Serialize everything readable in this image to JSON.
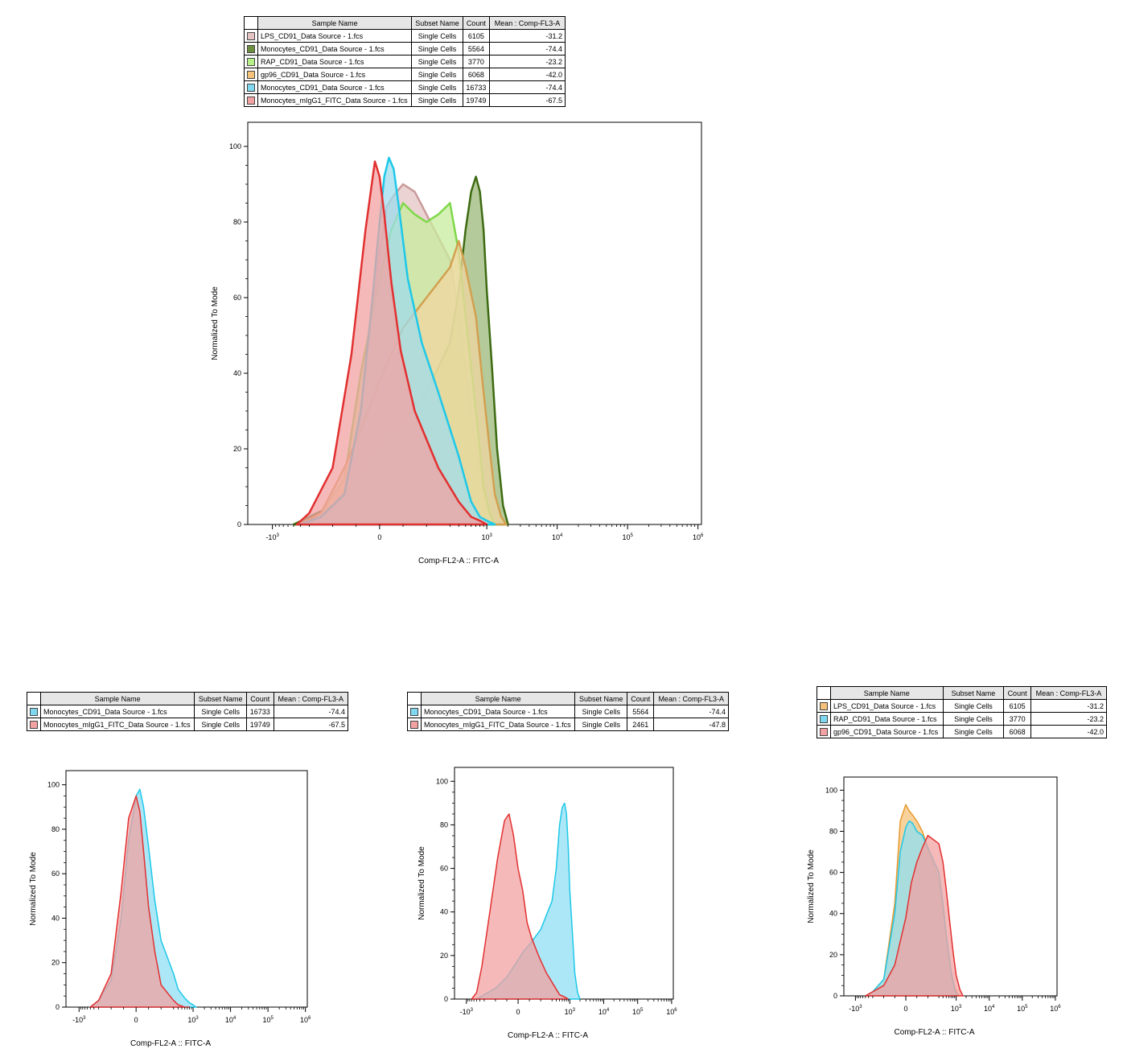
{
  "panels": [
    {
      "id": "main",
      "table": {
        "headers": [
          "Sample Name",
          "Subset Name",
          "Count",
          "Mean : Comp-FL3-A"
        ],
        "rows": [
          {
            "sample": "LPS_CD91_Data Source - 1.fcs",
            "subset": "Single Cells",
            "count": "6105",
            "mean": "-31.2",
            "color": "#e6c4c4"
          },
          {
            "sample": "Monocytes_CD91_Data Source - 1.fcs",
            "subset": "Single Cells",
            "count": "5564",
            "mean": "-74.4",
            "color": "#6b8f3e"
          },
          {
            "sample": "RAP_CD91_Data Source - 1.fcs",
            "subset": "Single Cells",
            "count": "3770",
            "mean": "-23.2",
            "color": "#b8f08a"
          },
          {
            "sample": "gp96_CD91_Data Source - 1.fcs",
            "subset": "Single Cells",
            "count": "6068",
            "mean": "-42.0",
            "color": "#f5c27a"
          },
          {
            "sample": "Monocytes_CD91_Data Source - 1.fcs",
            "subset": "Single Cells",
            "count": "16733",
            "mean": "-74.4",
            "color": "#7fd8f0"
          },
          {
            "sample": "Monocytes_mIgG1_FITC_Data Source - 1.fcs",
            "subset": "Single Cells",
            "count": "19749",
            "mean": "-67.5",
            "color": "#f2a2a2"
          }
        ]
      },
      "xlabel": "Comp-FL2-A :: FITC-A",
      "ylabel": "Normalized To Mode"
    },
    {
      "id": "bl",
      "table": {
        "headers": [
          "Sample Name",
          "Subset Name",
          "Count",
          "Mean : Comp-FL3-A"
        ],
        "rows": [
          {
            "sample": "Monocytes_CD91_Data Source - 1.fcs",
            "subset": "Single Cells",
            "count": "16733",
            "mean": "-74.4",
            "color": "#7fd8f0"
          },
          {
            "sample": "Monocytes_mIgG1_FITC_Data Source - 1.fcs",
            "subset": "Single Cells",
            "count": "19749",
            "mean": "-67.5",
            "color": "#f2a2a2"
          }
        ]
      },
      "xlabel": "Comp-FL2-A :: FITC-A",
      "ylabel": "Normalized To Mode"
    },
    {
      "id": "bm",
      "table": {
        "headers": [
          "Sample Name",
          "Subset Name",
          "Count",
          "Mean : Comp-FL3-A"
        ],
        "rows": [
          {
            "sample": "Monocytes_CD91_Data Source - 1.fcs",
            "subset": "Single Cells",
            "count": "5564",
            "mean": "-74.4",
            "color": "#7fd8f0"
          },
          {
            "sample": "Monocytes_mIgG1_FITC_Data Source - 1.fcs",
            "subset": "Single Cells",
            "count": "2461",
            "mean": "-47.8",
            "color": "#f2a2a2"
          }
        ]
      },
      "xlabel": "Comp-FL2-A :: FITC-A",
      "ylabel": "Normalized To Mode"
    },
    {
      "id": "br",
      "table": {
        "headers": [
          "Sample Name",
          "Subset Name",
          "Count",
          "Mean : Comp-FL3-A"
        ],
        "rows": [
          {
            "sample": "LPS_CD91_Data Source - 1.fcs",
            "subset": "Single Cells",
            "count": "6105",
            "mean": "-31.2",
            "color": "#f5c27a"
          },
          {
            "sample": "RAP_CD91_Data Source - 1.fcs",
            "subset": "Single Cells",
            "count": "3770",
            "mean": "-23.2",
            "color": "#7fd8f0"
          },
          {
            "sample": "gp96_CD91_Data Source - 1.fcs",
            "subset": "Single Cells",
            "count": "6068",
            "mean": "-42.0",
            "color": "#f2a2a2"
          }
        ]
      },
      "xlabel": "Comp-FL2-A :: FITC-A",
      "ylabel": "Normalized To Mode"
    }
  ],
  "chart_data": [
    {
      "type": "area",
      "x_scale": "biexponential",
      "ylim": [
        0,
        100
      ],
      "yticks": [
        "0",
        "20",
        "40",
        "60",
        "80",
        "100"
      ],
      "xticks": [
        "-10^3",
        "0",
        "10^3",
        "10^4",
        "10^5",
        "10^6"
      ],
      "series": [
        {
          "fill": "#e6c4c4",
          "stroke": "#c99a9a",
          "x": [
            -500,
            -300,
            -200,
            -100,
            -50,
            0,
            30,
            60,
            100,
            150,
            200,
            300,
            400,
            500,
            700,
            900,
            1100,
            1300
          ],
          "y": [
            0,
            2,
            5,
            18,
            45,
            72,
            84,
            87,
            90,
            88,
            82,
            70,
            55,
            40,
            20,
            8,
            2,
            0
          ]
        },
        {
          "fill": "#9cb878",
          "stroke": "#3d6b12",
          "x": [
            -500,
            -300,
            -200,
            -100,
            0,
            50,
            100,
            200,
            300,
            400,
            500,
            600,
            700,
            800,
            900,
            1000,
            1200,
            1400,
            1700,
            2000
          ],
          "y": [
            0,
            2,
            5,
            12,
            22,
            25,
            28,
            35,
            48,
            62,
            78,
            88,
            92,
            88,
            78,
            62,
            40,
            20,
            5,
            0
          ]
        },
        {
          "fill": "#c8ec9c",
          "stroke": "#7ed84a",
          "x": [
            -400,
            -250,
            -150,
            -80,
            0,
            50,
            100,
            150,
            200,
            250,
            300,
            400,
            500,
            700,
            900,
            1100,
            1300
          ],
          "y": [
            0,
            3,
            12,
            40,
            65,
            78,
            85,
            82,
            80,
            82,
            85,
            72,
            55,
            30,
            10,
            3,
            0
          ]
        },
        {
          "fill": "#f0d6a0",
          "stroke": "#d2a050",
          "x": [
            -400,
            -250,
            -150,
            -80,
            0,
            50,
            100,
            200,
            300,
            400,
            500,
            700,
            900,
            1100,
            1300,
            1600,
            1900
          ],
          "y": [
            0,
            3,
            15,
            25,
            38,
            45,
            52,
            60,
            68,
            75,
            68,
            55,
            35,
            20,
            8,
            2,
            0
          ]
        },
        {
          "fill": "#9fdcec",
          "stroke": "#1ec8e8",
          "x": [
            -400,
            -250,
            -150,
            -80,
            -30,
            0,
            20,
            40,
            60,
            80,
            120,
            180,
            250,
            400,
            600,
            800,
            1000,
            1300
          ],
          "y": [
            0,
            2,
            8,
            30,
            60,
            80,
            92,
            97,
            94,
            85,
            65,
            48,
            35,
            18,
            6,
            2,
            1,
            0
          ]
        },
        {
          "fill": "#f2a2a2",
          "stroke": "#e23030",
          "x": [
            -450,
            -300,
            -200,
            -120,
            -60,
            -20,
            0,
            20,
            50,
            90,
            150,
            250,
            400,
            600,
            800,
            1000
          ],
          "y": [
            0,
            3,
            15,
            45,
            78,
            96,
            92,
            82,
            64,
            46,
            30,
            15,
            6,
            2,
            1,
            0
          ]
        }
      ],
      "xlabel": "Comp-FL2-A :: FITC-A",
      "ylabel": "Normalized To Mode"
    },
    {
      "type": "area",
      "x_scale": "biexponential",
      "ylim": [
        0,
        100
      ],
      "yticks": [
        "0",
        "20",
        "40",
        "60",
        "80",
        "100"
      ],
      "xticks": [
        "-10^3",
        "0",
        "10^3",
        "10^4",
        "10^5",
        "10^6"
      ],
      "series": [
        {
          "fill": "#8fdff3",
          "stroke": "#1ec8e8",
          "x": [
            -500,
            -300,
            -200,
            -120,
            -60,
            0,
            30,
            60,
            100,
            150,
            200,
            300,
            400,
            600,
            800,
            1000,
            1200
          ],
          "y": [
            0,
            3,
            12,
            40,
            75,
            95,
            98,
            90,
            72,
            48,
            30,
            15,
            8,
            4,
            2,
            1,
            0
          ]
        },
        {
          "fill": "#f2a2a2",
          "stroke": "#e23030",
          "x": [
            -500,
            -300,
            -200,
            -120,
            -60,
            0,
            30,
            60,
            100,
            150,
            200,
            300,
            400,
            600,
            800
          ],
          "y": [
            0,
            3,
            15,
            52,
            85,
            95,
            88,
            70,
            45,
            25,
            10,
            3,
            1,
            0,
            0
          ]
        }
      ],
      "xlabel": "Comp-FL2-A :: FITC-A",
      "ylabel": "Normalized To Mode"
    },
    {
      "type": "area",
      "x_scale": "biexponential",
      "ylim": [
        0,
        100
      ],
      "yticks": [
        "0",
        "20",
        "40",
        "60",
        "80",
        "100"
      ],
      "xticks": [
        "-10^3",
        "0",
        "10^3",
        "10^4",
        "10^5",
        "10^6"
      ],
      "series": [
        {
          "fill": "#8fdff3",
          "stroke": "#1ec8e8",
          "x": [
            -500,
            -300,
            -200,
            -100,
            0,
            50,
            100,
            200,
            300,
            400,
            500,
            600,
            700,
            800,
            900,
            1000,
            1200,
            1400,
            1700,
            2000
          ],
          "y": [
            0,
            2,
            5,
            10,
            18,
            22,
            25,
            32,
            45,
            60,
            80,
            88,
            90,
            85,
            70,
            50,
            30,
            12,
            3,
            0
          ]
        },
        {
          "fill": "#f2a2a2",
          "stroke": "#e23030",
          "x": [
            -700,
            -500,
            -350,
            -250,
            -180,
            -120,
            -80,
            -40,
            0,
            40,
            80,
            120,
            180,
            250,
            350,
            500,
            700,
            900
          ],
          "y": [
            0,
            3,
            15,
            40,
            65,
            82,
            85,
            75,
            60,
            50,
            35,
            28,
            20,
            12,
            6,
            2,
            1,
            0
          ]
        }
      ],
      "xlabel": "Comp-FL2-A :: FITC-A",
      "ylabel": "Normalized To Mode"
    },
    {
      "type": "area",
      "x_scale": "biexponential",
      "ylim": [
        0,
        100
      ],
      "yticks": [
        "0",
        "20",
        "40",
        "60",
        "80",
        "100"
      ],
      "xticks": [
        "-10^3",
        "0",
        "10^3",
        "10^4",
        "10^5",
        "10^6"
      ],
      "series": [
        {
          "fill": "#f5c27a",
          "stroke": "#e89a30",
          "x": [
            -500,
            -300,
            -200,
            -100,
            -50,
            0,
            30,
            60,
            100,
            150,
            200,
            300,
            400,
            500,
            700,
            900,
            1100,
            1300
          ],
          "y": [
            0,
            2,
            8,
            45,
            85,
            93,
            90,
            88,
            85,
            80,
            72,
            55,
            40,
            28,
            12,
            4,
            1,
            0
          ]
        },
        {
          "fill": "#8fdff3",
          "stroke": "#1ec8e8",
          "x": [
            -500,
            -300,
            -200,
            -100,
            -50,
            0,
            30,
            60,
            100,
            150,
            200,
            300,
            400,
            500,
            700,
            900,
            1100
          ],
          "y": [
            0,
            2,
            8,
            40,
            70,
            82,
            85,
            84,
            80,
            78,
            72,
            60,
            45,
            30,
            12,
            3,
            0
          ]
        },
        {
          "fill": "#f2a2a2",
          "stroke": "#e23030",
          "x": [
            -500,
            -300,
            -200,
            -100,
            0,
            50,
            100,
            150,
            200,
            300,
            400,
            500,
            600,
            800,
            1000,
            1300,
            1600
          ],
          "y": [
            0,
            2,
            5,
            15,
            38,
            55,
            65,
            72,
            78,
            74,
            65,
            52,
            40,
            22,
            10,
            3,
            0
          ]
        }
      ],
      "xlabel": "Comp-FL2-A :: FITC-A",
      "ylabel": "Normalized To Mode"
    }
  ]
}
